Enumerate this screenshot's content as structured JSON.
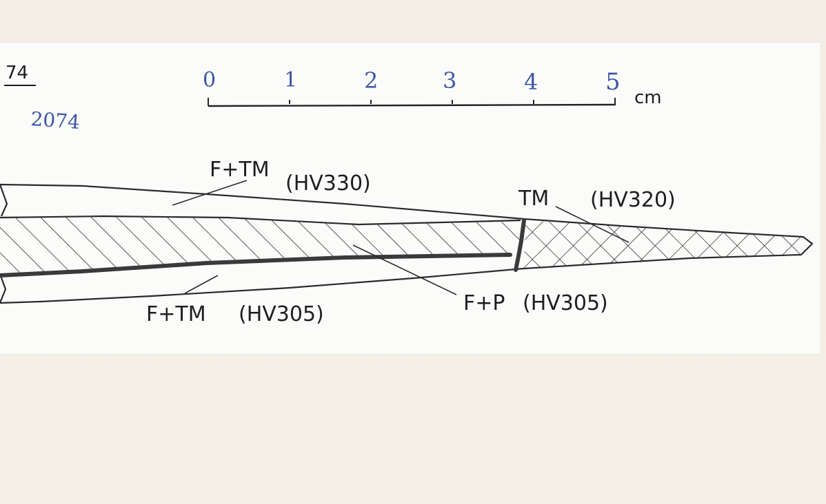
{
  "sheet": {
    "page_number": "74",
    "catalogue_number": "2074"
  },
  "scale_bar": {
    "ticks": [
      "0",
      "1",
      "2",
      "3",
      "4",
      "5"
    ],
    "unit": "cm"
  },
  "regions": [
    {
      "id": "upper-zone",
      "microstructure": "F+TM",
      "hardness": "(HV330)"
    },
    {
      "id": "tip-zone",
      "microstructure": "TM",
      "hardness": "(HV320)"
    },
    {
      "id": "core-zone",
      "microstructure": "F+P",
      "hardness": "(HV305)"
    },
    {
      "id": "lower-zone",
      "microstructure": "F+TM",
      "hardness": "(HV305)"
    }
  ]
}
